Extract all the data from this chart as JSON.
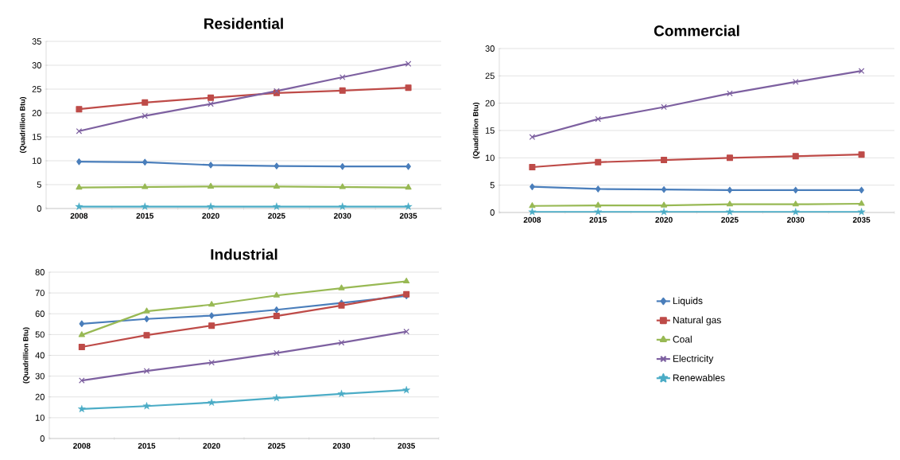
{
  "chart_data": [
    {
      "type": "line",
      "title": "Residential",
      "ylabel": "(Quadrillion Btu)",
      "categories": [
        "2008",
        "2015",
        "2020",
        "2025",
        "2030",
        "2035"
      ],
      "ylim": [
        0,
        35
      ],
      "yticks": [
        0,
        5,
        10,
        15,
        20,
        25,
        30,
        35
      ],
      "grid": "y",
      "series": [
        {
          "color": "#4a7ebb",
          "marker": "diamond",
          "values": [
            9.8,
            9.7,
            9.1,
            8.9,
            8.8,
            8.8
          ]
        },
        {
          "color": "#be4b48",
          "marker": "square",
          "values": [
            20.8,
            22.2,
            23.2,
            24.2,
            24.7,
            25.3
          ]
        },
        {
          "color": "#98b954",
          "marker": "triangle",
          "values": [
            4.4,
            4.5,
            4.6,
            4.6,
            4.5,
            4.4
          ]
        },
        {
          "color": "#7d60a0",
          "marker": "cross",
          "values": [
            16.2,
            19.4,
            21.9,
            24.6,
            27.5,
            30.3
          ]
        },
        {
          "color": "#4bacc6",
          "marker": "star",
          "values": [
            0.4,
            0.4,
            0.4,
            0.4,
            0.4,
            0.4
          ]
        }
      ]
    },
    {
      "type": "line",
      "title": "Commercial",
      "ylabel": "(Quadrillion Btu)",
      "categories": [
        "2008",
        "2015",
        "2020",
        "2025",
        "2030",
        "2035"
      ],
      "ylim": [
        0,
        30
      ],
      "yticks": [
        0,
        5,
        10,
        15,
        20,
        25,
        30
      ],
      "grid": "y",
      "series": [
        {
          "color": "#4a7ebb",
          "marker": "diamond",
          "values": [
            4.7,
            4.3,
            4.2,
            4.1,
            4.1,
            4.1
          ]
        },
        {
          "color": "#be4b48",
          "marker": "square",
          "values": [
            8.3,
            9.2,
            9.6,
            10.0,
            10.3,
            10.6
          ]
        },
        {
          "color": "#98b954",
          "marker": "triangle",
          "values": [
            1.2,
            1.3,
            1.3,
            1.5,
            1.5,
            1.6
          ]
        },
        {
          "color": "#7d60a0",
          "marker": "cross",
          "values": [
            13.8,
            17.1,
            19.3,
            21.8,
            23.9,
            25.9
          ]
        },
        {
          "color": "#4bacc6",
          "marker": "star",
          "values": [
            0.1,
            0.1,
            0.1,
            0.1,
            0.1,
            0.1
          ]
        }
      ]
    },
    {
      "type": "line",
      "title": "Industrial",
      "ylabel": "(Quadrillion Btu)",
      "categories": [
        "2008",
        "2015",
        "2020",
        "2025",
        "2030",
        "2035"
      ],
      "ylim": [
        0,
        80
      ],
      "yticks": [
        0,
        10,
        20,
        30,
        40,
        50,
        60,
        70,
        80
      ],
      "grid": "y",
      "legend": "right",
      "series": [
        {
          "name": "Liquids",
          "color": "#4a7ebb",
          "marker": "diamond",
          "values": [
            55.2,
            57.5,
            59.1,
            61.9,
            65.2,
            68.6
          ]
        },
        {
          "name": "Natural gas",
          "color": "#be4b48",
          "marker": "square",
          "values": [
            44.0,
            49.7,
            54.3,
            58.9,
            64.0,
            69.4
          ]
        },
        {
          "name": "Coal",
          "color": "#98b954",
          "marker": "triangle",
          "values": [
            49.8,
            61.2,
            64.4,
            68.8,
            72.3,
            75.6
          ]
        },
        {
          "name": "Electricity",
          "color": "#7d60a0",
          "marker": "cross",
          "values": [
            27.9,
            32.5,
            36.5,
            41.1,
            46.1,
            51.4
          ]
        },
        {
          "name": "Renewables",
          "color": "#4bacc6",
          "marker": "star",
          "values": [
            14.2,
            15.6,
            17.3,
            19.5,
            21.5,
            23.3
          ]
        }
      ]
    }
  ]
}
